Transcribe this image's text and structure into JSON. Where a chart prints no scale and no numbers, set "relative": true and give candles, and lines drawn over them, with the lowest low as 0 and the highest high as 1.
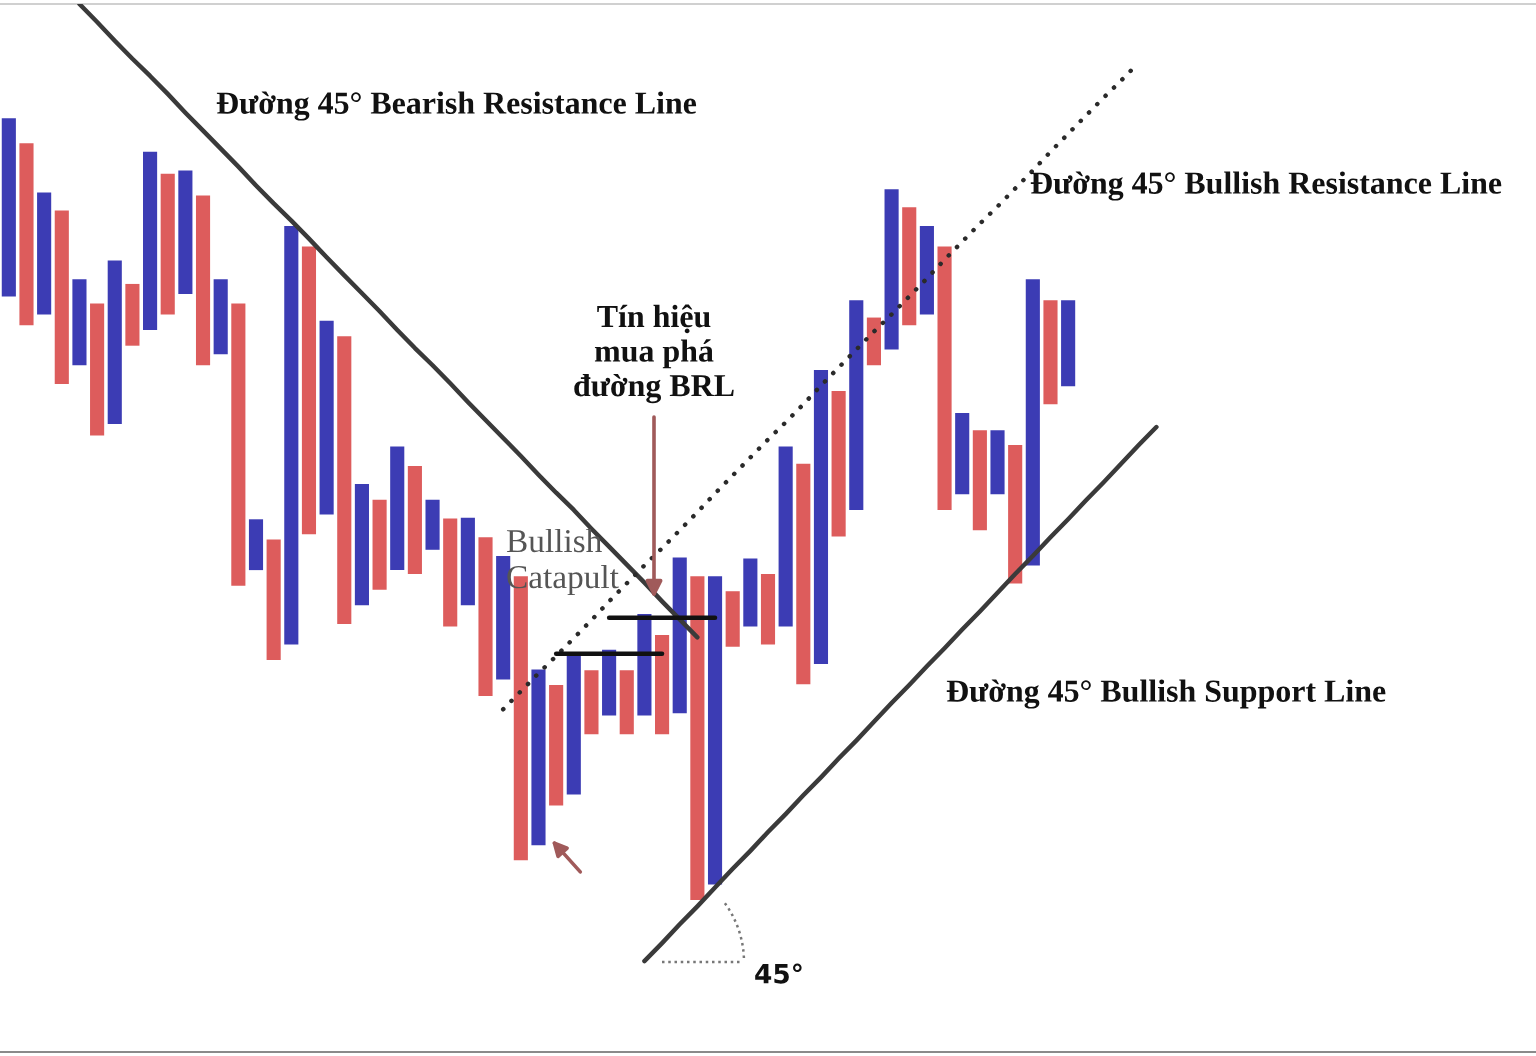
{
  "chart_data": {
    "type": "candlestick",
    "relative": true,
    "categories": [
      null,
      null,
      null,
      null,
      null,
      null,
      null,
      null,
      null,
      null,
      null,
      null,
      null,
      null,
      null,
      null,
      null,
      null,
      null,
      null,
      null,
      null,
      null,
      null,
      null,
      null,
      null,
      null,
      null,
      null,
      null,
      null,
      null,
      null,
      null,
      null,
      null,
      null,
      null,
      null,
      null,
      null,
      null,
      null,
      null,
      null,
      null,
      null,
      null,
      null,
      null,
      null,
      null,
      null,
      null,
      null,
      null,
      null,
      null,
      null,
      null,
      null,
      null,
      null,
      null,
      null,
      null,
      null,
      null,
      null,
      null,
      null,
      null,
      null,
      null,
      null,
      null,
      null,
      null,
      null,
      null,
      null,
      null,
      null,
      null,
      null,
      null
    ],
    "series": [
      {
        "ohlc": [
          [
            0.772,
            1.0,
            0.772,
            1.0
          ],
          [
            0.968,
            0.968,
            0.735,
            0.735
          ],
          [
            0.749,
            0.905,
            0.749,
            0.905
          ],
          [
            0.882,
            0.882,
            0.66,
            0.66
          ],
          [
            0.684,
            0.794,
            0.684,
            0.794
          ],
          [
            0.763,
            0.763,
            0.594,
            0.594
          ],
          [
            0.609,
            0.818,
            0.609,
            0.818
          ],
          [
            0.788,
            0.788,
            0.709,
            0.709
          ],
          [
            0.729,
            0.957,
            0.729,
            0.957
          ],
          [
            0.929,
            0.929,
            0.749,
            0.749
          ],
          [
            0.775,
            0.933,
            0.775,
            0.933
          ],
          [
            0.901,
            0.901,
            0.684,
            0.684
          ],
          [
            0.698,
            0.794,
            0.698,
            0.794
          ],
          [
            0.763,
            0.763,
            0.402,
            0.402
          ],
          [
            0.422,
            0.487,
            0.422,
            0.487
          ],
          [
            0.461,
            0.461,
            0.307,
            0.307
          ],
          [
            0.327,
            0.862,
            0.327,
            0.862
          ],
          [
            0.836,
            0.836,
            0.468,
            0.468
          ],
          [
            0.493,
            0.741,
            0.493,
            0.741
          ],
          [
            0.721,
            0.721,
            0.353,
            0.353
          ],
          [
            0.377,
            0.532,
            0.377,
            0.532
          ],
          [
            0.512,
            0.512,
            0.397,
            0.397
          ],
          [
            0.422,
            0.58,
            0.422,
            0.58
          ],
          [
            0.555,
            0.555,
            0.417,
            0.417
          ],
          [
            0.448,
            0.512,
            0.448,
            0.512
          ],
          [
            0.488,
            0.488,
            0.35,
            0.35
          ],
          [
            0.377,
            0.489,
            0.377,
            0.489
          ],
          [
            0.464,
            0.464,
            0.261,
            0.261
          ],
          [
            0.282,
            0.44,
            0.282,
            0.44
          ],
          [
            0.414,
            0.414,
            0.051,
            0.051
          ],
          [
            0.07,
            0.295,
            0.07,
            0.295
          ],
          [
            0.275,
            0.275,
            0.121,
            0.121
          ],
          [
            0.135,
            0.316,
            0.135,
            0.316
          ],
          [
            0.294,
            0.294,
            0.212,
            0.212
          ],
          [
            0.236,
            0.32,
            0.236,
            0.32
          ],
          [
            0.294,
            0.294,
            0.212,
            0.212
          ],
          [
            0.236,
            0.366,
            0.236,
            0.366
          ],
          [
            0.339,
            0.339,
            0.212,
            0.212
          ],
          [
            0.239,
            0.438,
            0.239,
            0.438
          ],
          [
            0.414,
            0.414,
            0.0,
            0.0
          ],
          [
            0.02,
            0.414,
            0.02,
            0.414
          ],
          [
            0.395,
            0.395,
            0.324,
            0.324
          ],
          [
            0.35,
            0.437,
            0.35,
            0.437
          ],
          [
            0.417,
            0.417,
            0.327,
            0.327
          ],
          [
            0.35,
            0.58,
            0.35,
            0.58
          ],
          [
            0.558,
            0.558,
            0.276,
            0.276
          ],
          [
            0.302,
            0.678,
            0.302,
            0.678
          ],
          [
            0.651,
            0.651,
            0.465,
            0.465
          ],
          [
            0.499,
            0.767,
            0.499,
            0.767
          ],
          [
            0.745,
            0.745,
            0.684,
            0.684
          ],
          [
            0.704,
            0.909,
            0.704,
            0.909
          ],
          [
            0.886,
            0.886,
            0.735,
            0.735
          ],
          [
            0.749,
            0.862,
            0.749,
            0.862
          ],
          [
            0.836,
            0.836,
            0.499,
            0.499
          ],
          [
            0.519,
            0.623,
            0.519,
            0.623
          ],
          [
            0.601,
            0.601,
            0.473,
            0.473
          ],
          [
            0.519,
            0.601,
            0.519,
            0.601
          ],
          [
            0.582,
            0.582,
            0.405,
            0.405
          ],
          [
            0.428,
            0.794,
            0.428,
            0.794
          ],
          [
            0.767,
            0.767,
            0.634,
            0.634
          ],
          [
            0.657,
            0.767,
            0.657,
            0.767
          ],
          null,
          null,
          null,
          null,
          null,
          null,
          null,
          null,
          null,
          null,
          null,
          null,
          null,
          null,
          null,
          null,
          null,
          null,
          null,
          null,
          null,
          null,
          null,
          null,
          null,
          null
        ],
        "colors": [
          "#3c3cb4",
          "#dd5c5c",
          "#3c3cb4",
          "#dd5c5c",
          "#3c3cb4",
          "#dd5c5c",
          "#3c3cb4",
          "#dd5c5c",
          "#3c3cb4",
          "#dd5c5c",
          "#3c3cb4",
          "#dd5c5c",
          "#3c3cb4",
          "#dd5c5c",
          "#3c3cb4",
          "#dd5c5c",
          "#3c3cb4",
          "#dd5c5c",
          "#3c3cb4",
          "#dd5c5c",
          "#3c3cb4",
          "#dd5c5c",
          "#3c3cb4",
          "#dd5c5c",
          "#3c3cb4",
          "#dd5c5c",
          "#3c3cb4",
          "#dd5c5c",
          "#3c3cb4",
          "#dd5c5c",
          "#3c3cb4",
          "#dd5c5c",
          "#3c3cb4",
          "#dd5c5c",
          "#3c3cb4",
          "#dd5c5c",
          "#3c3cb4",
          "#dd5c5c",
          "#3c3cb4",
          "#dd5c5c",
          "#3c3cb4",
          "#dd5c5c",
          "#3c3cb4",
          "#dd5c5c",
          "#3c3cb4",
          "#dd5c5c",
          "#3c3cb4",
          "#dd5c5c",
          "#3c3cb4",
          "#dd5c5c",
          "#3c3cb4",
          "#dd5c5c",
          "#3c3cb4",
          "#dd5c5c",
          "#3c3cb4",
          "#dd5c5c",
          "#3c3cb4",
          "#dd5c5c",
          "#3c3cb4",
          "#dd5c5c",
          "#3c3cb4",
          null,
          null,
          null,
          null,
          null,
          null,
          null,
          null,
          null,
          null,
          null,
          null,
          null,
          null,
          null,
          null,
          null,
          null,
          null,
          null,
          null,
          null,
          null,
          null,
          null,
          null
        ]
      },
      {
        "type": "line",
        "color": "#3a3a3a",
        "line_style": "solid",
        "values": [
          null,
          null,
          null,
          null,
          1.146,
          1.123,
          1.099,
          1.076,
          1.054,
          1.031,
          1.007,
          0.984,
          0.961,
          0.938,
          0.914,
          0.891,
          0.869,
          0.846,
          0.822,
          0.799,
          0.776,
          0.753,
          0.729,
          0.706,
          0.684,
          0.661,
          0.637,
          0.614,
          0.591,
          0.568,
          0.544,
          0.521,
          0.499,
          0.475,
          0.452,
          0.429,
          0.406,
          0.382,
          0.359,
          0.336,
          null,
          null,
          null,
          null,
          null,
          null,
          null,
          null,
          null,
          null,
          null,
          null,
          null,
          null,
          null,
          null,
          null,
          null,
          null,
          null,
          null,
          null,
          null,
          null,
          null,
          null,
          null,
          null,
          null,
          null,
          null,
          null,
          null,
          null,
          null,
          null,
          null,
          null,
          null,
          null,
          null,
          null,
          null,
          null,
          null,
          null,
          null
        ]
      },
      {
        "type": "line",
        "color": "#2a2a2a",
        "line_style": "dotted",
        "values": [
          null,
          null,
          null,
          null,
          null,
          null,
          null,
          null,
          null,
          null,
          null,
          null,
          null,
          null,
          null,
          null,
          null,
          null,
          null,
          null,
          null,
          null,
          null,
          null,
          null,
          null,
          null,
          null,
          0.244,
          0.267,
          0.29,
          0.312,
          0.335,
          0.358,
          0.382,
          0.405,
          0.428,
          0.45,
          0.473,
          0.496,
          0.52,
          0.543,
          0.566,
          0.589,
          0.611,
          0.634,
          0.658,
          0.681,
          0.704,
          0.727,
          0.749,
          0.772,
          0.795,
          0.819,
          0.842,
          0.865,
          0.887,
          0.91,
          0.933,
          0.957,
          0.98,
          1.003,
          1.026,
          1.048,
          1.071,
          null,
          null,
          null,
          null,
          null,
          null,
          null,
          null,
          null,
          null,
          null,
          null,
          null,
          null,
          null,
          null,
          null,
          null,
          null,
          null,
          null,
          null
        ]
      },
      {
        "type": "line",
        "color": "#3a3a3a",
        "line_style": "solid",
        "values": [
          null,
          null,
          null,
          null,
          null,
          null,
          null,
          null,
          null,
          null,
          null,
          null,
          null,
          null,
          null,
          null,
          null,
          null,
          null,
          null,
          null,
          null,
          null,
          null,
          null,
          null,
          null,
          null,
          null,
          null,
          null,
          null,
          null,
          null,
          null,
          null,
          -0.078,
          -0.055,
          -0.031,
          -0.008,
          0.016,
          0.04,
          0.063,
          0.087,
          0.11,
          0.134,
          0.157,
          0.181,
          0.204,
          0.228,
          0.252,
          0.275,
          0.299,
          0.322,
          0.346,
          0.369,
          0.393,
          0.417,
          0.44,
          0.464,
          0.487,
          0.511,
          0.534,
          0.558,
          0.582,
          0.605,
          null,
          null,
          null,
          null,
          null,
          null,
          null,
          null,
          null,
          null,
          null,
          null,
          null,
          null,
          null,
          null,
          null,
          null,
          null,
          null,
          null
        ]
      },
      {
        "type": "line",
        "color": "#111111",
        "line_style": "solid",
        "values": [
          null,
          null,
          null,
          null,
          null,
          null,
          null,
          null,
          null,
          null,
          null,
          null,
          null,
          null,
          null,
          null,
          null,
          null,
          null,
          null,
          null,
          null,
          null,
          null,
          null,
          null,
          null,
          null,
          null,
          null,
          null,
          0.315,
          0.315,
          0.315,
          0.315,
          0.315,
          0.315,
          0.315,
          null,
          null,
          null,
          null,
          null,
          null,
          null,
          null,
          null,
          null,
          null,
          null,
          null,
          null,
          null,
          null,
          null,
          null,
          null,
          null,
          null,
          null,
          null,
          null,
          null,
          null,
          null,
          null,
          null,
          null,
          null,
          null,
          null,
          null,
          null,
          null,
          null,
          null,
          null,
          null,
          null,
          null,
          null,
          null,
          null,
          null,
          null,
          null,
          null
        ]
      },
      {
        "type": "line",
        "color": "#111111",
        "line_style": "solid",
        "values": [
          null,
          null,
          null,
          null,
          null,
          null,
          null,
          null,
          null,
          null,
          null,
          null,
          null,
          null,
          null,
          null,
          null,
          null,
          null,
          null,
          null,
          null,
          null,
          null,
          null,
          null,
          null,
          null,
          null,
          null,
          null,
          null,
          null,
          null,
          0.361,
          0.361,
          0.361,
          0.361,
          0.361,
          0.361,
          0.361,
          null,
          null,
          null,
          null,
          null,
          null,
          null,
          null,
          null,
          null,
          null,
          null,
          null,
          null,
          null,
          null,
          null,
          null,
          null,
          null,
          null,
          null,
          null,
          null,
          null,
          null,
          null,
          null,
          null,
          null,
          null,
          null,
          null,
          null,
          null,
          null,
          null,
          null,
          null,
          null,
          null,
          null,
          null,
          null,
          null,
          null
        ]
      }
    ],
    "annotations": [
      "Đường 45° Bearish Resistance Line",
      "Đường 45° Bullish Resistance Line",
      "Tín hiệu\nmua phá\nđường BRL",
      "Bullish\nCatapult",
      "Đường 45° Bullish Support Line",
      "45°"
    ]
  }
}
